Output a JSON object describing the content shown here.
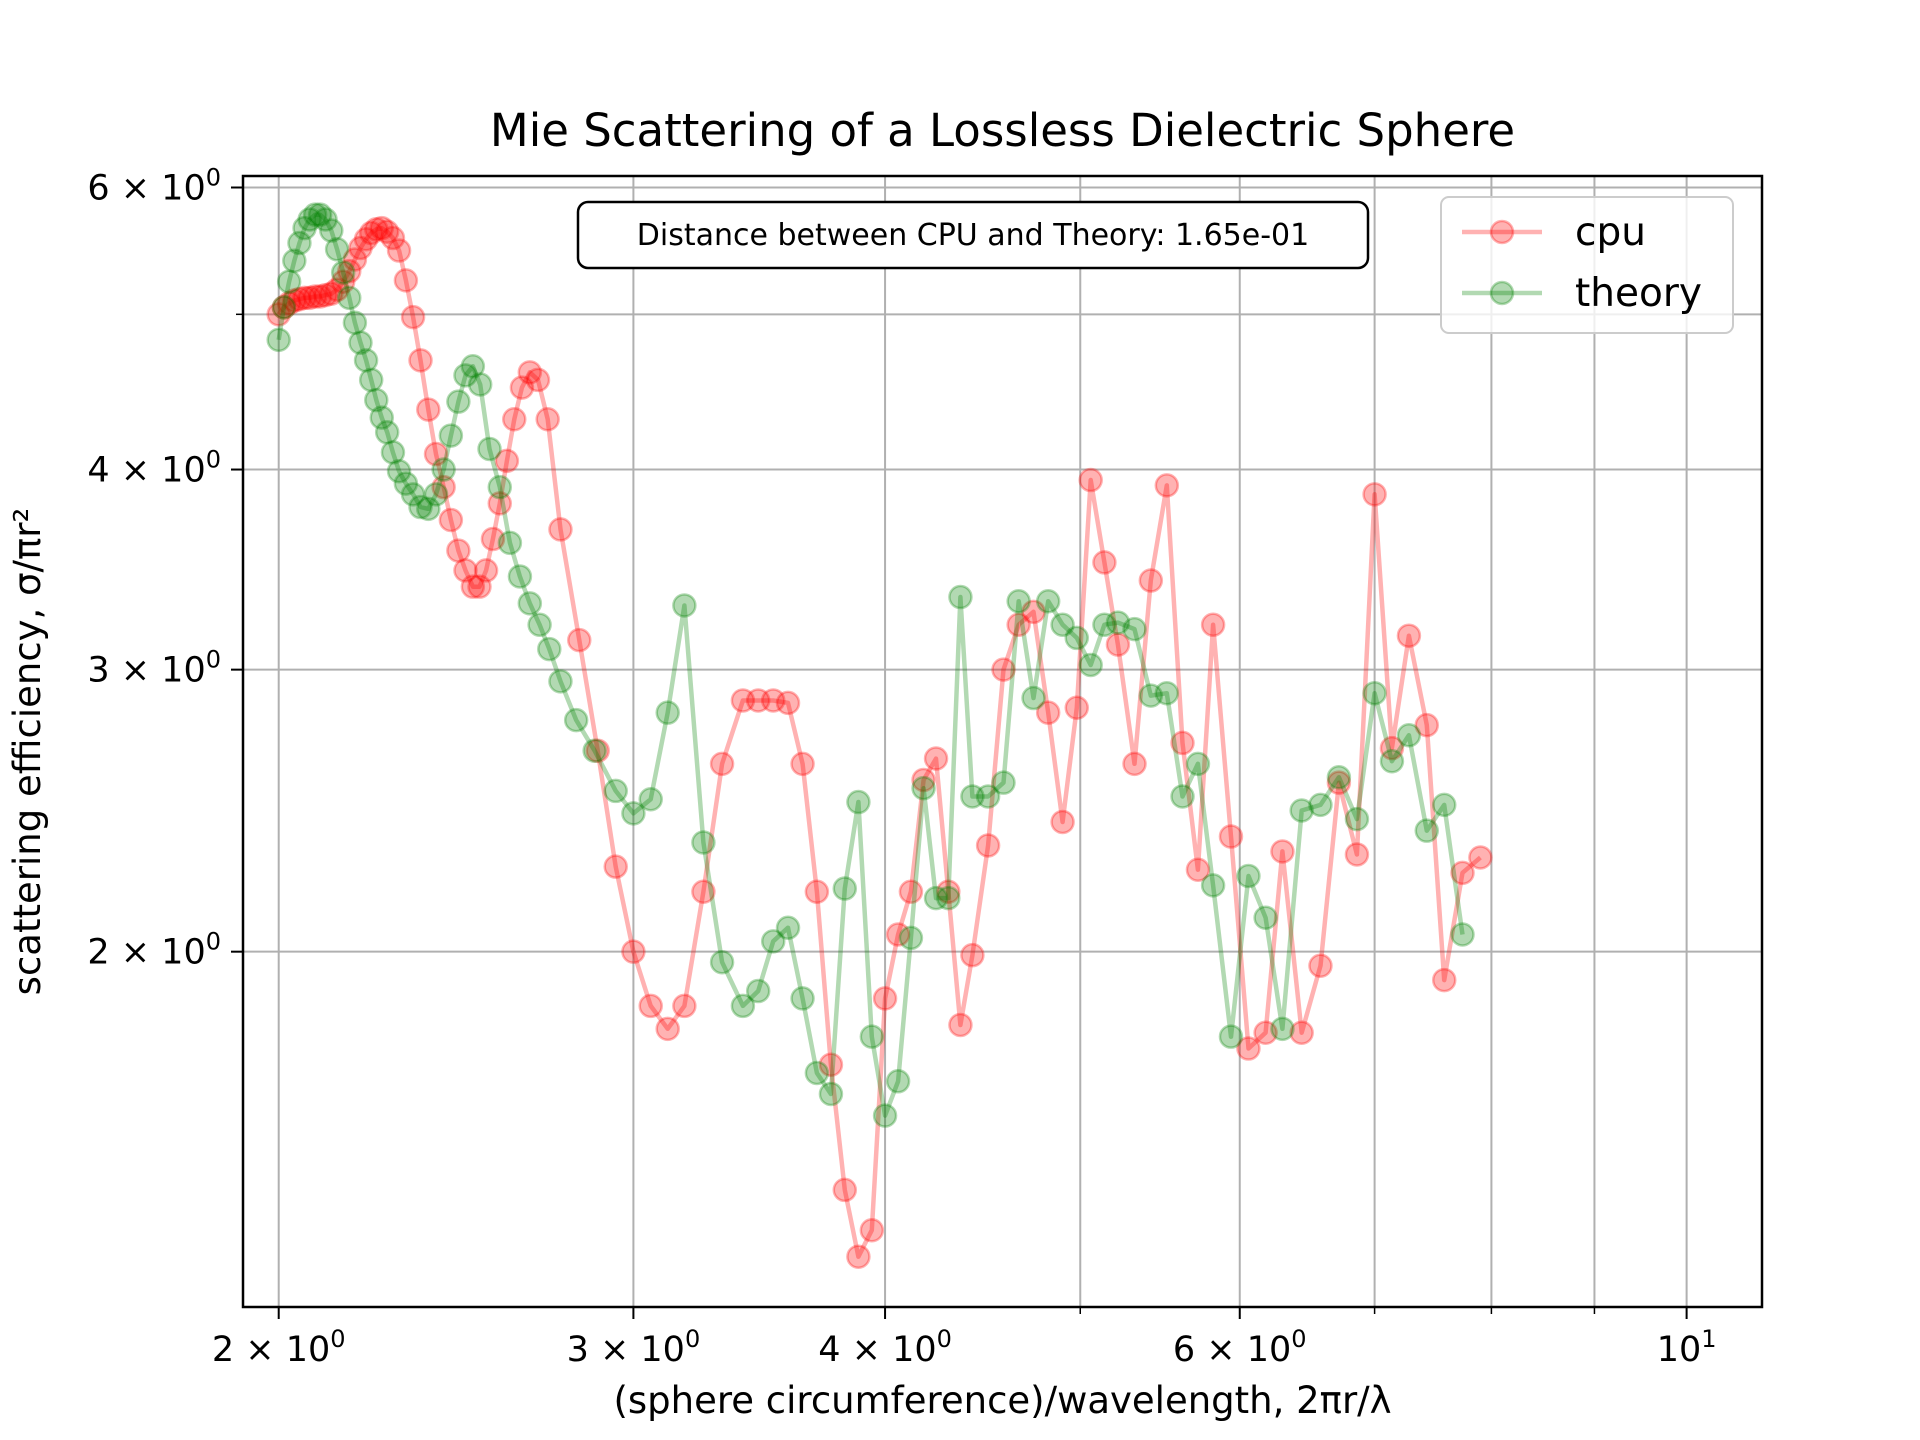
{
  "chart_data": {
    "type": "line",
    "title": "Mie Scattering of a Lossless Dielectric Sphere",
    "xlabel": "(sphere circumference)/wavelength, 2πr/λ",
    "ylabel": "scattering efficiency, σ/πr²",
    "xscale": "log",
    "yscale": "log",
    "xlim": [
      1.92,
      10.9
    ],
    "ylim": [
      1.2,
      6.1
    ],
    "grid": true,
    "legend_position": "top-right",
    "x_ticks": [
      {
        "value": 2,
        "base": "2 × 10",
        "exp": "0"
      },
      {
        "value": 3,
        "base": "3 × 10",
        "exp": "0"
      },
      {
        "value": 4,
        "base": "4 × 10",
        "exp": "0"
      },
      {
        "value": 6,
        "base": "6 × 10",
        "exp": "0"
      },
      {
        "value": 10,
        "base": "10",
        "exp": "1"
      }
    ],
    "x_minor_ticks": [
      5,
      7,
      8,
      9
    ],
    "y_ticks": [
      {
        "value": 2,
        "base": "2 × 10",
        "exp": "0"
      },
      {
        "value": 3,
        "base": "3 × 10",
        "exp": "0"
      },
      {
        "value": 4,
        "base": "4 × 10",
        "exp": "0"
      },
      {
        "value": 6,
        "base": "6 × 10",
        "exp": "0"
      }
    ],
    "y_minor_ticks": [
      5
    ],
    "annotation": "Distance between CPU and Theory: 1.65e-01",
    "series": [
      {
        "name": "cpu",
        "color": "#ff0000",
        "points": [
          [
            2.0,
            5.0
          ],
          [
            2.012,
            5.05
          ],
          [
            2.024,
            5.08
          ],
          [
            2.036,
            5.1
          ],
          [
            2.048,
            5.11
          ],
          [
            2.06,
            5.12
          ],
          [
            2.072,
            5.12
          ],
          [
            2.085,
            5.13
          ],
          [
            2.097,
            5.13
          ],
          [
            2.11,
            5.14
          ],
          [
            2.124,
            5.15
          ],
          [
            2.138,
            5.18
          ],
          [
            2.153,
            5.24
          ],
          [
            2.168,
            5.32
          ],
          [
            2.182,
            5.41
          ],
          [
            2.196,
            5.5
          ],
          [
            2.21,
            5.57
          ],
          [
            2.223,
            5.62
          ],
          [
            2.236,
            5.65
          ],
          [
            2.25,
            5.66
          ],
          [
            2.264,
            5.63
          ],
          [
            2.279,
            5.58
          ],
          [
            2.295,
            5.48
          ],
          [
            2.313,
            5.25
          ],
          [
            2.332,
            4.98
          ],
          [
            2.352,
            4.68
          ],
          [
            2.373,
            4.36
          ],
          [
            2.394,
            4.09
          ],
          [
            2.415,
            3.9
          ],
          [
            2.435,
            3.72
          ],
          [
            2.456,
            3.56
          ],
          [
            2.476,
            3.46
          ],
          [
            2.497,
            3.38
          ],
          [
            2.516,
            3.38
          ],
          [
            2.535,
            3.46
          ],
          [
            2.555,
            3.62
          ],
          [
            2.575,
            3.81
          ],
          [
            2.596,
            4.05
          ],
          [
            2.618,
            4.3
          ],
          [
            2.641,
            4.5
          ],
          [
            2.665,
            4.6
          ],
          [
            2.69,
            4.55
          ],
          [
            2.72,
            4.3
          ],
          [
            2.76,
            3.67
          ],
          [
            2.82,
            3.13
          ],
          [
            2.88,
            2.67
          ],
          [
            2.94,
            2.26
          ],
          [
            3.0,
            2.0
          ],
          [
            3.06,
            1.85
          ],
          [
            3.12,
            1.79
          ],
          [
            3.18,
            1.85
          ],
          [
            3.25,
            2.18
          ],
          [
            3.32,
            2.62
          ],
          [
            3.4,
            2.87
          ],
          [
            3.46,
            2.87
          ],
          [
            3.52,
            2.87
          ],
          [
            3.58,
            2.86
          ],
          [
            3.64,
            2.62
          ],
          [
            3.7,
            2.18
          ],
          [
            3.76,
            1.7
          ],
          [
            3.82,
            1.42
          ],
          [
            3.88,
            1.29
          ],
          [
            3.94,
            1.34
          ],
          [
            4.0,
            1.87
          ],
          [
            4.06,
            2.05
          ],
          [
            4.12,
            2.18
          ],
          [
            4.18,
            2.56
          ],
          [
            4.24,
            2.64
          ],
          [
            4.3,
            2.18
          ],
          [
            4.36,
            1.8
          ],
          [
            4.42,
            1.99
          ],
          [
            4.5,
            2.33
          ],
          [
            4.58,
            3.0
          ],
          [
            4.66,
            3.2
          ],
          [
            4.74,
            3.26
          ],
          [
            4.82,
            2.82
          ],
          [
            4.9,
            2.41
          ],
          [
            4.98,
            2.84
          ],
          [
            5.06,
            3.94
          ],
          [
            5.14,
            3.5
          ],
          [
            5.22,
            3.11
          ],
          [
            5.32,
            2.62
          ],
          [
            5.42,
            3.41
          ],
          [
            5.52,
            3.91
          ],
          [
            5.62,
            2.7
          ],
          [
            5.72,
            2.25
          ],
          [
            5.82,
            3.2
          ],
          [
            5.94,
            2.36
          ],
          [
            6.06,
            1.74
          ],
          [
            6.18,
            1.78
          ],
          [
            6.3,
            2.31
          ],
          [
            6.44,
            1.78
          ],
          [
            6.58,
            1.96
          ],
          [
            6.72,
            2.55
          ],
          [
            6.86,
            2.3
          ],
          [
            7.0,
            3.86
          ],
          [
            7.14,
            2.68
          ],
          [
            7.28,
            3.15
          ],
          [
            7.43,
            2.77
          ],
          [
            7.58,
            1.92
          ],
          [
            7.74,
            2.24
          ],
          [
            7.9,
            2.29
          ]
        ]
      },
      {
        "name": "theory",
        "color": "#008000",
        "points": [
          [
            2.0,
            4.82
          ],
          [
            2.012,
            5.05
          ],
          [
            2.024,
            5.24
          ],
          [
            2.036,
            5.4
          ],
          [
            2.048,
            5.54
          ],
          [
            2.06,
            5.66
          ],
          [
            2.072,
            5.73
          ],
          [
            2.085,
            5.77
          ],
          [
            2.097,
            5.77
          ],
          [
            2.11,
            5.73
          ],
          [
            2.124,
            5.64
          ],
          [
            2.138,
            5.49
          ],
          [
            2.153,
            5.31
          ],
          [
            2.168,
            5.12
          ],
          [
            2.182,
            4.94
          ],
          [
            2.196,
            4.8
          ],
          [
            2.21,
            4.68
          ],
          [
            2.223,
            4.55
          ],
          [
            2.236,
            4.42
          ],
          [
            2.25,
            4.31
          ],
          [
            2.264,
            4.22
          ],
          [
            2.279,
            4.1
          ],
          [
            2.295,
            3.99
          ],
          [
            2.313,
            3.92
          ],
          [
            2.332,
            3.86
          ],
          [
            2.352,
            3.79
          ],
          [
            2.373,
            3.78
          ],
          [
            2.394,
            3.86
          ],
          [
            2.415,
            4.0
          ],
          [
            2.435,
            4.2
          ],
          [
            2.456,
            4.41
          ],
          [
            2.476,
            4.58
          ],
          [
            2.497,
            4.64
          ],
          [
            2.518,
            4.52
          ],
          [
            2.545,
            4.12
          ],
          [
            2.575,
            3.9
          ],
          [
            2.605,
            3.6
          ],
          [
            2.635,
            3.43
          ],
          [
            2.665,
            3.3
          ],
          [
            2.695,
            3.2
          ],
          [
            2.725,
            3.09
          ],
          [
            2.76,
            2.95
          ],
          [
            2.81,
            2.79
          ],
          [
            2.87,
            2.67
          ],
          [
            2.94,
            2.52
          ],
          [
            3.0,
            2.44
          ],
          [
            3.06,
            2.49
          ],
          [
            3.12,
            2.82
          ],
          [
            3.18,
            3.29
          ],
          [
            3.25,
            2.34
          ],
          [
            3.32,
            1.97
          ],
          [
            3.4,
            1.85
          ],
          [
            3.46,
            1.89
          ],
          [
            3.52,
            2.03
          ],
          [
            3.58,
            2.07
          ],
          [
            3.64,
            1.87
          ],
          [
            3.7,
            1.68
          ],
          [
            3.76,
            1.63
          ],
          [
            3.82,
            2.19
          ],
          [
            3.88,
            2.48
          ],
          [
            3.94,
            1.77
          ],
          [
            4.0,
            1.58
          ],
          [
            4.06,
            1.66
          ],
          [
            4.12,
            2.04
          ],
          [
            4.18,
            2.53
          ],
          [
            4.24,
            2.16
          ],
          [
            4.3,
            2.16
          ],
          [
            4.36,
            3.33
          ],
          [
            4.42,
            2.5
          ],
          [
            4.5,
            2.5
          ],
          [
            4.58,
            2.55
          ],
          [
            4.66,
            3.31
          ],
          [
            4.74,
            2.88
          ],
          [
            4.82,
            3.31
          ],
          [
            4.9,
            3.2
          ],
          [
            4.98,
            3.14
          ],
          [
            5.06,
            3.02
          ],
          [
            5.14,
            3.2
          ],
          [
            5.22,
            3.21
          ],
          [
            5.32,
            3.18
          ],
          [
            5.42,
            2.89
          ],
          [
            5.52,
            2.9
          ],
          [
            5.62,
            2.5
          ],
          [
            5.72,
            2.62
          ],
          [
            5.82,
            2.2
          ],
          [
            5.94,
            1.77
          ],
          [
            6.06,
            2.23
          ],
          [
            6.18,
            2.1
          ],
          [
            6.3,
            1.79
          ],
          [
            6.44,
            2.45
          ],
          [
            6.58,
            2.47
          ],
          [
            6.72,
            2.57
          ],
          [
            6.86,
            2.42
          ],
          [
            7.0,
            2.9
          ],
          [
            7.14,
            2.63
          ],
          [
            7.28,
            2.73
          ],
          [
            7.43,
            2.38
          ],
          [
            7.58,
            2.47
          ],
          [
            7.74,
            2.05
          ]
        ]
      }
    ]
  }
}
